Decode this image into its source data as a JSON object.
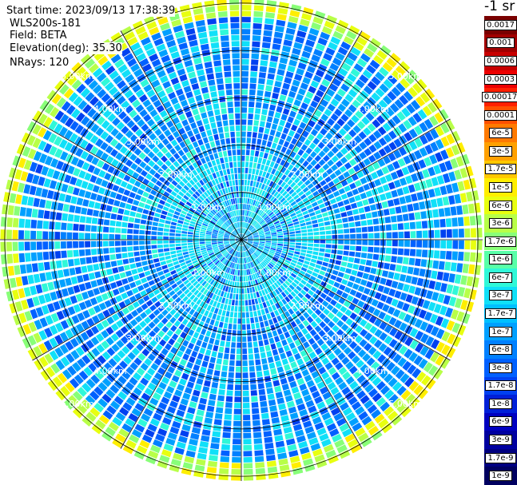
{
  "header": {
    "start_time": "Start time: 2023/09/13 17:38:39",
    "instrument": "WLS200s-181",
    "field": "Field: BETA",
    "elevation": "Elevation(deg): 35.30",
    "nrays": "NRays: 120"
  },
  "colorbar": {
    "unit": "-1 sr",
    "bins": [
      {
        "label": "0.0017",
        "color": "#7a0000"
      },
      {
        "label": "0.001",
        "color": "#a00000"
      },
      {
        "label": "0.0006",
        "color": "#c80000"
      },
      {
        "label": "0.0003",
        "color": "#ec0000"
      },
      {
        "label": "0.00017",
        "color": "#ff2000"
      },
      {
        "label": "0.0001",
        "color": "#ff5000"
      },
      {
        "label": "6e-5",
        "color": "#ff7a00"
      },
      {
        "label": "3e-5",
        "color": "#ffa000"
      },
      {
        "label": "1.7e-5",
        "color": "#ffc800"
      },
      {
        "label": "1e-5",
        "color": "#ffee00"
      },
      {
        "label": "6e-6",
        "color": "#e8ff10"
      },
      {
        "label": "3e-6",
        "color": "#b8ff48"
      },
      {
        "label": "1.7e-6",
        "color": "#88ff78"
      },
      {
        "label": "1e-6",
        "color": "#58ffa8"
      },
      {
        "label": "6e-7",
        "color": "#30f8d8"
      },
      {
        "label": "3e-7",
        "color": "#10e0f8"
      },
      {
        "label": "1.7e-7",
        "color": "#00c0ff"
      },
      {
        "label": "1e-7",
        "color": "#00a0ff"
      },
      {
        "label": "6e-8",
        "color": "#0080ff"
      },
      {
        "label": "3e-8",
        "color": "#0060ff"
      },
      {
        "label": "1.7e-8",
        "color": "#0040f0"
      },
      {
        "label": "1e-8",
        "color": "#0020d8"
      },
      {
        "label": "6e-9",
        "color": "#0000c0"
      },
      {
        "label": "3e-9",
        "color": "#0000a0"
      },
      {
        "label": "1.7e-9",
        "color": "#000080"
      },
      {
        "label": "1e-9",
        "color": "#000060"
      }
    ]
  },
  "chart_data": {
    "type": "heatmap",
    "projection": "polar PPI scan",
    "field": "BETA",
    "elevation_deg": 35.3,
    "nrays": 120,
    "range_rings_km": [
      1,
      2,
      3,
      4,
      5
    ],
    "range_labels": [
      "1.00km",
      "2.00km",
      "3.00km",
      "4.00km",
      "5.00km"
    ],
    "max_range_km": 5.1,
    "spoke_step_deg": 30,
    "grid": true,
    "dominant_bins": [
      "6e-8",
      "3e-8",
      "1e-7",
      "3e-7"
    ],
    "outer_ring_bins": [
      "1.7e-6",
      "3e-6",
      "1e-5",
      "6e-6"
    ]
  }
}
